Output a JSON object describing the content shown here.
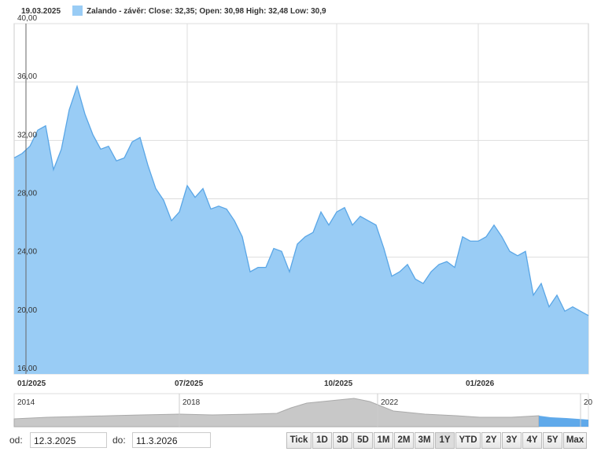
{
  "header": {
    "date": "19.03.2025"
  },
  "chart_data": {
    "type": "area",
    "categories": [
      "01/2025",
      null,
      null,
      null,
      null,
      null,
      null,
      null,
      null,
      null,
      null,
      null,
      null,
      null,
      null,
      null,
      null,
      null,
      null,
      null,
      null,
      null,
      "07/2025",
      null,
      null,
      null,
      null,
      null,
      null,
      null,
      null,
      null,
      null,
      null,
      null,
      null,
      null,
      null,
      null,
      null,
      null,
      "10/2025",
      null,
      null,
      null,
      null,
      null,
      null,
      null,
      null,
      null,
      null,
      null,
      null,
      null,
      null,
      null,
      null,
      null,
      "01/2026",
      null,
      null,
      null,
      null,
      null,
      null,
      null,
      null,
      null,
      null,
      null,
      null,
      null,
      null
    ],
    "series": [
      {
        "name": "Zalando - závěr: Close: 32,35; Open: 30,98 High: 32,48 Low: 30,9",
        "color": "#99ccf5",
        "values": [
          30.8,
          31.1,
          31.6,
          32.7,
          33.0,
          30.0,
          31.4,
          34.1,
          35.7,
          33.8,
          32.4,
          31.4,
          31.6,
          30.6,
          30.8,
          31.9,
          32.2,
          30.3,
          28.7,
          27.9,
          26.5,
          27.1,
          28.9,
          28.1,
          28.7,
          27.3,
          27.5,
          27.3,
          26.5,
          25.4,
          23.0,
          23.3,
          23.3,
          24.6,
          24.4,
          23.0,
          24.9,
          25.4,
          25.7,
          27.1,
          26.2,
          27.1,
          27.4,
          26.2,
          26.8,
          26.5,
          26.2,
          24.6,
          22.7,
          23.0,
          23.5,
          22.5,
          22.2,
          23.0,
          23.5,
          23.7,
          23.3,
          25.4,
          25.1,
          25.1,
          25.4,
          26.2,
          25.4,
          24.4,
          24.1,
          24.4,
          21.4,
          22.2,
          20.6,
          21.4,
          20.3,
          20.6,
          20.3,
          20.0
        ]
      }
    ],
    "ylim": [
      16,
      40
    ],
    "yticks": [
      {
        "value": 16,
        "label": "16,00"
      },
      {
        "value": 20,
        "label": "20,00"
      },
      {
        "value": 24,
        "label": "24,00"
      },
      {
        "value": 28,
        "label": "28,00"
      },
      {
        "value": 32,
        "label": "32,00"
      },
      {
        "value": 36,
        "label": "36,00"
      },
      {
        "value": 40,
        "label": "40,00"
      }
    ],
    "grid": true
  },
  "navigator": {
    "labels": [
      "2014",
      "2018",
      "2022",
      "20"
    ]
  },
  "range": {
    "from_label": "od:",
    "from": "12.3.2025",
    "to_label": "do:",
    "to": "11.3.2026",
    "buttons": [
      "Tick",
      "1D",
      "3D",
      "5D",
      "1M",
      "2M",
      "3M",
      "1Y",
      "YTD",
      "2Y",
      "3Y",
      "4Y",
      "5Y",
      "Max"
    ],
    "active": "1Y"
  }
}
